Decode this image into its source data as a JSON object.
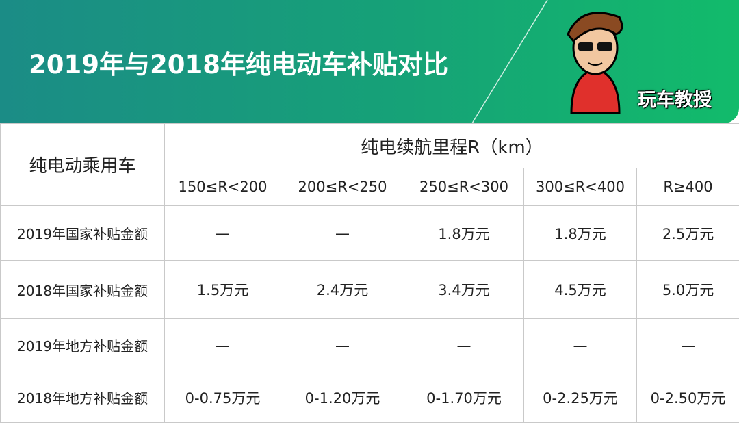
{
  "header": {
    "title": "2019年与2018年纯电动车补贴对比",
    "badge": "玩车教授"
  },
  "table": {
    "corner": "纯电动乘用车",
    "group_header": "纯电续航里程R（km）",
    "columns": [
      "150≤R<200",
      "200≤R<250",
      "250≤R<300",
      "300≤R<400",
      "R≥400"
    ],
    "rows": [
      [
        "2019年国家补贴金额",
        "—",
        "—",
        "1.8万元",
        "1.8万元",
        "2.5万元"
      ],
      [
        "2018年国家补贴金额",
        "1.5万元",
        "2.4万元",
        "3.4万元",
        "4.5万元",
        "5.0万元"
      ],
      [
        "2019年地方补贴金额",
        "—",
        "—",
        "—",
        "—",
        "—"
      ],
      [
        "2018年地方补贴金额",
        "0-0.75万元",
        "0-1.20万元",
        "0-1.70万元",
        "0-2.25万元",
        "0-2.50万元"
      ]
    ]
  }
}
